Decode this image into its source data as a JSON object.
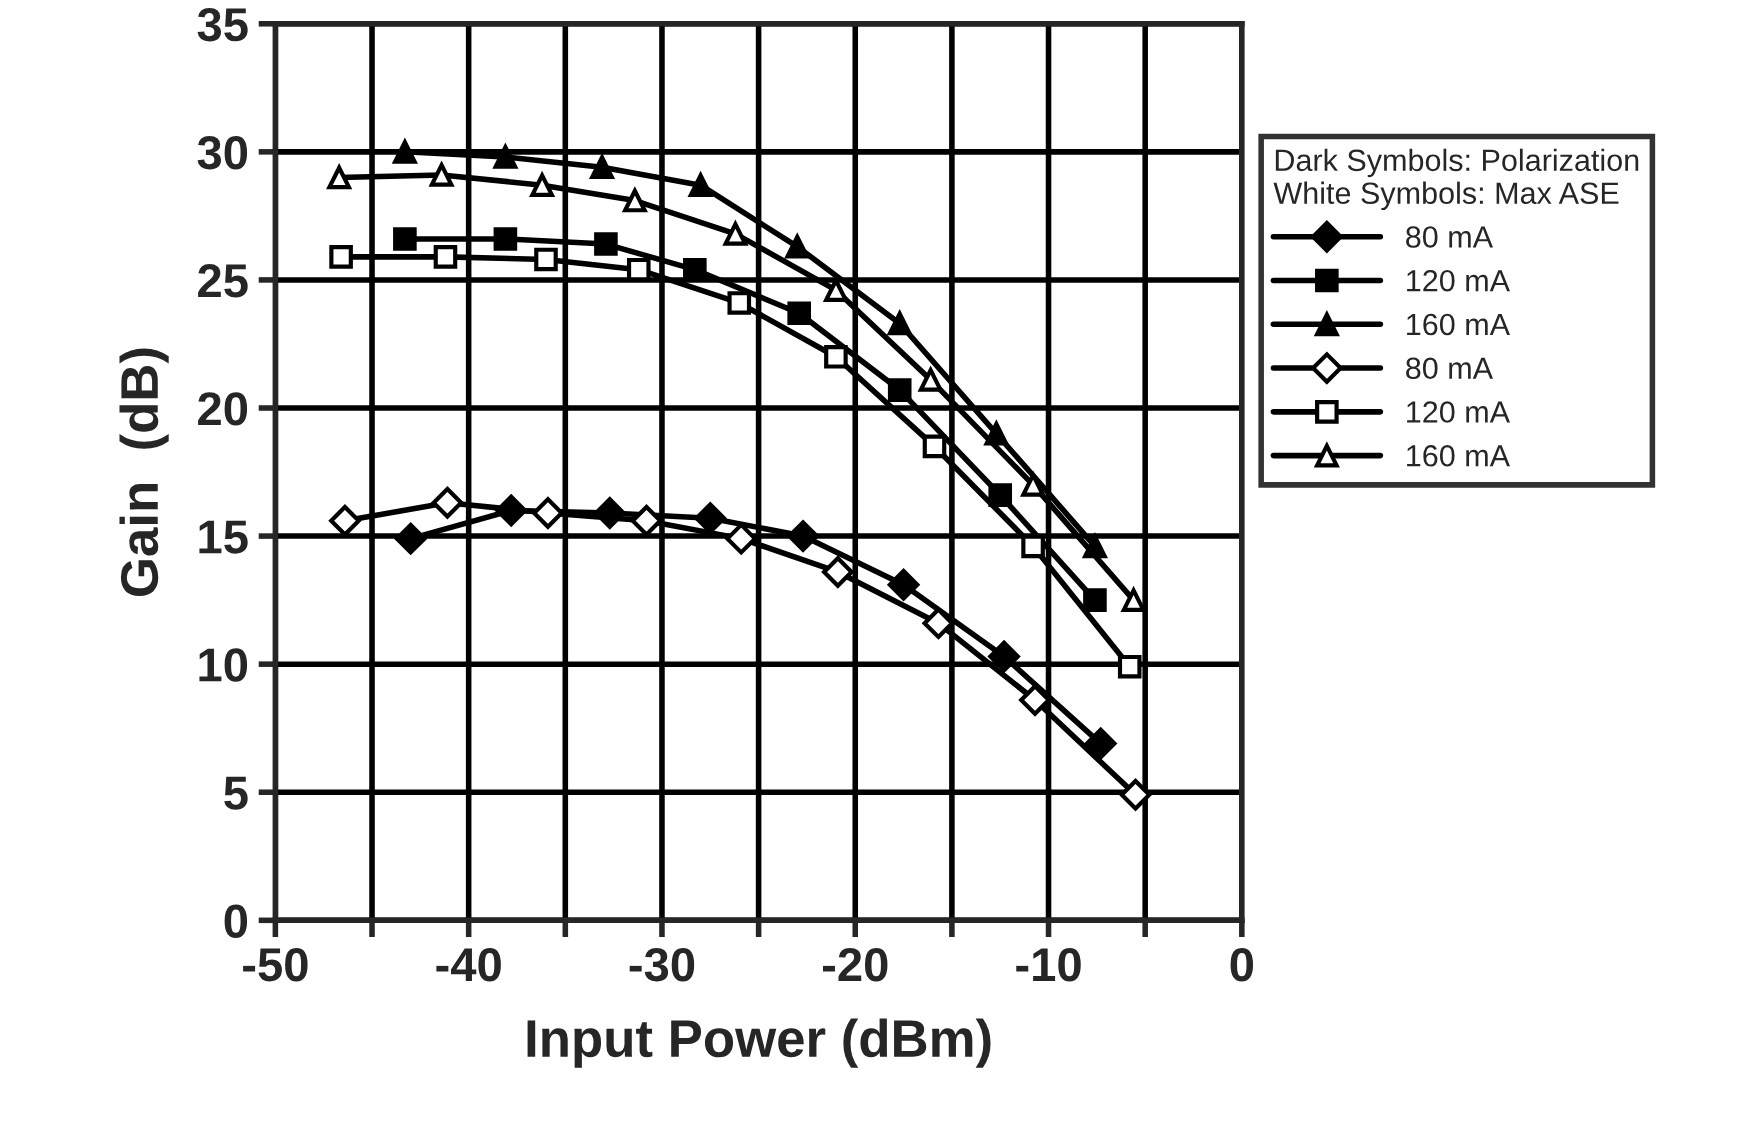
{
  "chart_data": {
    "type": "line",
    "xlabel": "Input Power (dBm)",
    "ylabel": "Gain  (dB)",
    "legend_title": "Dark Symbols: Polarization\nWhite Symbols: Max ASE",
    "xlim": [
      -50,
      0
    ],
    "ylim": [
      0,
      35
    ],
    "xticks": [
      -50,
      {
        "value": -45,
        "label": null
      },
      -40,
      {
        "value": -35,
        "label": null
      },
      -30,
      {
        "value": -25,
        "label": null
      },
      -20,
      {
        "value": -15,
        "label": null
      },
      -10,
      {
        "value": -5,
        "label": null
      },
      0
    ],
    "yticks": [
      0,
      5,
      10,
      15,
      20,
      25,
      30,
      35
    ],
    "grid": true,
    "legend": "right",
    "line_style": "solid",
    "series": [
      {
        "name": "80 mA",
        "color": "#000000",
        "marker": "diamond",
        "x": [
          -43.0,
          -37.8,
          -32.7,
          -27.5,
          -22.7,
          -17.5,
          -12.3,
          -7.3
        ],
        "values": [
          14.9,
          16.0,
          15.9,
          15.7,
          15.0,
          13.1,
          10.3,
          6.9
        ]
      },
      {
        "name": "120 mA",
        "color": "#000000",
        "marker": "square",
        "x": [
          -43.3,
          -38.1,
          -32.9,
          -28.3,
          -22.9,
          -17.7,
          -12.5,
          -7.6
        ],
        "values": [
          26.6,
          26.6,
          26.4,
          25.4,
          23.7,
          20.7,
          16.6,
          12.5
        ]
      },
      {
        "name": "160 mA",
        "color": "#000000",
        "marker": "triangle",
        "x": [
          -43.3,
          -38.1,
          -33.1,
          -28.0,
          -23.0,
          -17.7,
          -12.7,
          -7.6
        ],
        "values": [
          30.0,
          29.8,
          29.4,
          28.7,
          26.3,
          23.3,
          19.0,
          14.6
        ]
      },
      {
        "name": "80 mA",
        "color": "#ffffff",
        "marker": "diamond",
        "x": [
          -46.4,
          -41.1,
          -35.9,
          -30.8,
          -25.9,
          -20.9,
          -15.7,
          -10.7,
          -5.5
        ],
        "values": [
          15.6,
          16.3,
          15.9,
          15.6,
          14.9,
          13.6,
          11.6,
          8.6,
          4.9
        ]
      },
      {
        "name": "120 mA",
        "color": "#ffffff",
        "marker": "square",
        "x": [
          -46.6,
          -41.2,
          -36.0,
          -31.2,
          -26.0,
          -21.0,
          -15.9,
          -10.8,
          -5.8
        ],
        "values": [
          25.9,
          25.9,
          25.8,
          25.4,
          24.1,
          22.0,
          18.5,
          14.6,
          9.9
        ]
      },
      {
        "name": "160 mA",
        "color": "#ffffff",
        "marker": "triangle",
        "x": [
          -46.7,
          -41.4,
          -36.2,
          -31.4,
          -26.2,
          -21.0,
          -16.1,
          -10.8,
          -5.6
        ],
        "values": [
          29.0,
          29.1,
          28.7,
          28.1,
          26.8,
          24.6,
          21.1,
          17.0,
          12.5
        ]
      }
    ]
  }
}
